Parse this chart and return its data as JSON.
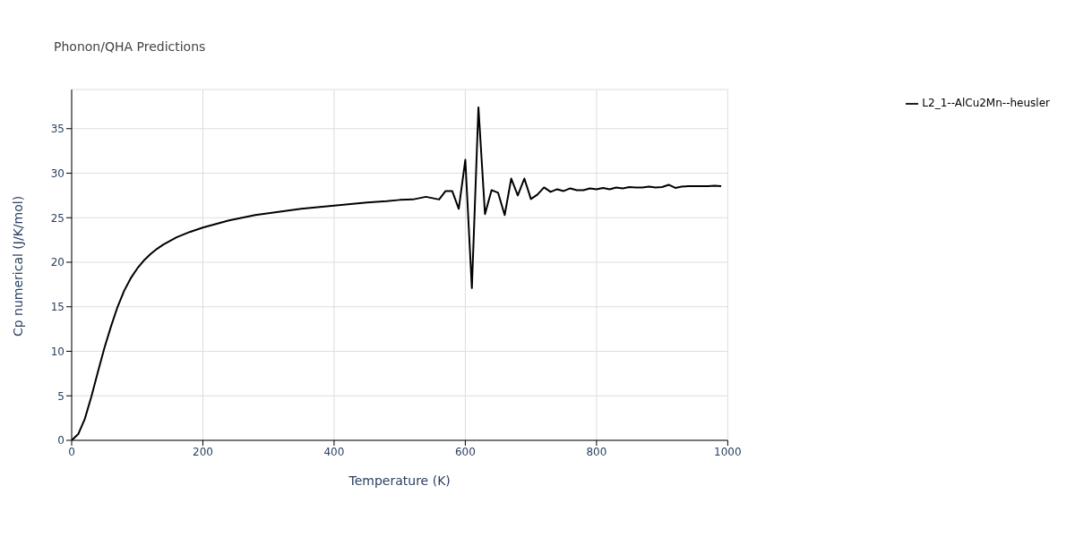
{
  "chart_data": {
    "type": "line",
    "title": "Phonon/QHA Predictions",
    "xlabel": "Temperature (K)",
    "ylabel": "Cp numerical (J/K/mol)",
    "x": [
      0,
      10,
      20,
      30,
      40,
      50,
      60,
      70,
      80,
      90,
      100,
      110,
      120,
      130,
      140,
      150,
      160,
      170,
      180,
      200,
      220,
      240,
      260,
      280,
      300,
      350,
      400,
      450,
      480,
      500,
      520,
      540,
      560,
      570,
      580,
      590,
      600,
      610,
      620,
      630,
      640,
      650,
      660,
      670,
      680,
      690,
      700,
      710,
      720,
      730,
      740,
      750,
      760,
      770,
      780,
      790,
      800,
      810,
      820,
      830,
      840,
      850,
      860,
      870,
      880,
      890,
      900,
      910,
      920,
      930,
      940,
      950,
      960,
      970,
      980,
      990
    ],
    "series": [
      {
        "name": "L2_1--AlCu2Mn--heusler",
        "color": "#000000",
        "values": [
          0,
          0.7,
          2.4,
          4.9,
          7.7,
          10.4,
          12.8,
          15.0,
          16.8,
          18.2,
          19.3,
          20.2,
          20.9,
          21.5,
          22.0,
          22.4,
          22.8,
          23.1,
          23.4,
          23.9,
          24.3,
          24.7,
          25.0,
          25.3,
          25.5,
          26.0,
          26.35,
          26.7,
          26.85,
          27.0,
          27.05,
          27.35,
          27.05,
          28.0,
          28.0,
          26.0,
          31.5,
          17.1,
          37.4,
          25.4,
          28.1,
          27.8,
          25.3,
          29.4,
          27.5,
          29.4,
          27.1,
          27.6,
          28.4,
          27.9,
          28.2,
          28.0,
          28.3,
          28.1,
          28.1,
          28.3,
          28.2,
          28.35,
          28.2,
          28.4,
          28.3,
          28.45,
          28.4,
          28.4,
          28.5,
          28.4,
          28.45,
          28.7,
          28.35,
          28.5,
          28.55,
          28.55,
          28.55,
          28.55,
          28.6,
          28.55
        ]
      }
    ],
    "xlim": [
      0,
      1000
    ],
    "xticks": [
      0,
      200,
      400,
      600,
      800,
      1000
    ],
    "ylim": [
      0,
      39.4
    ],
    "yticks": [
      0,
      5,
      10,
      15,
      20,
      25,
      30,
      35
    ],
    "grid": true,
    "legend": "top right",
    "marker": "none",
    "line_style": "solid"
  }
}
